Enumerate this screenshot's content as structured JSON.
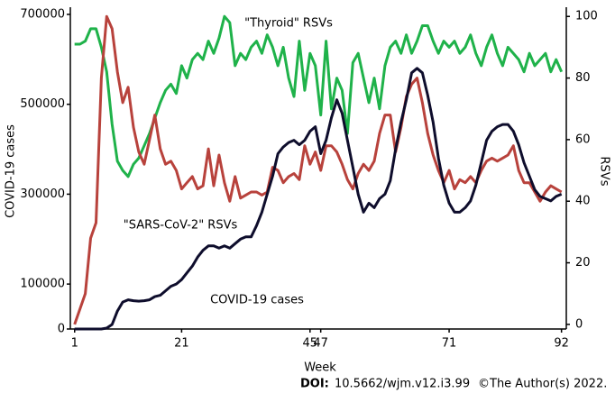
{
  "chart_data": {
    "type": "line",
    "x_label": "Week",
    "y_label": "COVID-19  cases",
    "y2_label": "RSVs",
    "x": [
      1,
      2,
      3,
      4,
      5,
      6,
      7,
      8,
      9,
      10,
      11,
      12,
      13,
      14,
      15,
      16,
      17,
      18,
      19,
      20,
      21,
      22,
      23,
      24,
      25,
      26,
      27,
      28,
      29,
      30,
      31,
      32,
      33,
      34,
      35,
      36,
      37,
      38,
      39,
      40,
      41,
      42,
      43,
      44,
      45,
      46,
      47,
      48,
      49,
      50,
      51,
      52,
      53,
      54,
      55,
      56,
      57,
      58,
      59,
      60,
      61,
      62,
      63,
      64,
      65,
      66,
      67,
      68,
      69,
      70,
      71,
      72,
      73,
      74,
      75,
      76,
      77,
      78,
      79,
      80,
      81,
      82,
      83,
      84,
      85,
      86,
      87,
      88,
      89,
      90,
      91,
      92
    ],
    "xlim": [
      0.2,
      92.9
    ],
    "xticks": [
      1,
      21,
      45,
      47,
      71,
      92
    ],
    "ylim": [
      0,
      716000
    ],
    "yticks": [
      0,
      100000,
      300000,
      500000,
      700000
    ],
    "y2lim": [
      -1.5,
      103
    ],
    "y2ticks": [
      0,
      20,
      40,
      60,
      80,
      100
    ],
    "series": [
      {
        "name": "\"Thyroid\" RSVs",
        "color": "#1fb24a",
        "axis": "y2",
        "values": [
          91,
          91,
          92,
          96,
          96,
          90,
          82,
          65,
          53,
          50,
          48,
          52,
          54,
          58,
          62,
          67,
          72,
          76,
          78,
          75,
          84,
          80,
          86,
          88,
          86,
          92,
          88,
          93,
          100,
          98,
          84,
          88,
          86,
          90,
          92,
          88,
          94,
          90,
          84,
          90,
          80,
          74,
          92,
          76,
          88,
          84,
          68,
          92,
          70,
          80,
          76,
          62,
          85,
          88,
          80,
          72,
          80,
          70,
          84,
          90,
          92,
          88,
          94,
          88,
          92,
          97,
          97,
          92,
          88,
          92,
          90,
          92,
          88,
          90,
          94,
          88,
          84,
          90,
          94,
          88,
          84,
          90,
          88,
          86,
          82,
          88,
          84,
          86,
          88,
          82,
          86,
          82
        ]
      },
      {
        "name": "\"SARS-CoV-2\" RSVs",
        "color": "#b8423c",
        "axis": "y2",
        "values": [
          0,
          5,
          10,
          28,
          33,
          80,
          100,
          96,
          82,
          72,
          77,
          64,
          56,
          52,
          60,
          68,
          57,
          52,
          53,
          50,
          44,
          46,
          48,
          44,
          45,
          57,
          45,
          55,
          46,
          40,
          48,
          41,
          42,
          43,
          43,
          42,
          43,
          51,
          50,
          46,
          48,
          49,
          47,
          58,
          52,
          56,
          50,
          58,
          58,
          56,
          52,
          47,
          44,
          49,
          52,
          50,
          53,
          62,
          68,
          68,
          56,
          64,
          74,
          78,
          80,
          72,
          62,
          55,
          50,
          46,
          50,
          44,
          47,
          46,
          48,
          46,
          50,
          53,
          54,
          53,
          54,
          55,
          58,
          50,
          46,
          46,
          43,
          40,
          43,
          45,
          44,
          43
        ]
      },
      {
        "name": "COVID-19 cases",
        "color": "#0e0d2c",
        "values": [
          0,
          0,
          0,
          0,
          0,
          0,
          2000,
          10000,
          40000,
          60000,
          65000,
          63000,
          62000,
          63000,
          65000,
          72000,
          75000,
          85000,
          95000,
          100000,
          110000,
          125000,
          140000,
          160000,
          175000,
          185000,
          185000,
          180000,
          185000,
          180000,
          190000,
          200000,
          205000,
          205000,
          230000,
          260000,
          300000,
          340000,
          390000,
          405000,
          415000,
          420000,
          410000,
          420000,
          440000,
          450000,
          390000,
          420000,
          470000,
          510000,
          480000,
          420000,
          360000,
          300000,
          260000,
          280000,
          270000,
          290000,
          300000,
          330000,
          400000,
          460000,
          510000,
          570000,
          580000,
          570000,
          520000,
          460000,
          380000,
          320000,
          280000,
          260000,
          260000,
          270000,
          285000,
          320000,
          370000,
          420000,
          440000,
          450000,
          455000,
          455000,
          440000,
          410000,
          370000,
          340000,
          310000,
          295000,
          290000,
          285000,
          295000,
          300000
        ]
      }
    ]
  },
  "footer": {
    "doi_label": "DOI:",
    "doi": "10.5662/wjm.v12.i3.99",
    "copyright": "©The Author(s) 2022."
  }
}
